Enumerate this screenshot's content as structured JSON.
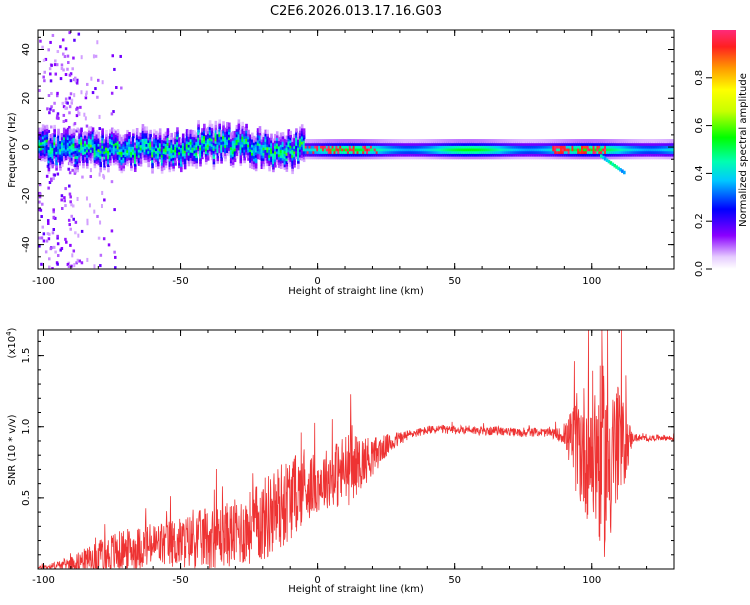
{
  "title": "C2E6.2026.013.17.16.G03",
  "chart_data": [
    {
      "type": "heatmap",
      "xlabel": "Height of straight line (km)",
      "ylabel": "Frequency (Hz)",
      "xlim": [
        -102,
        130
      ],
      "ylim": [
        -50,
        48
      ],
      "xticks": [
        -100,
        -50,
        0,
        50,
        100
      ],
      "yticks": [
        -40,
        -20,
        0,
        20,
        40
      ],
      "xtick_labels": [
        "-100",
        "-50",
        "0",
        "50",
        "100"
      ],
      "ytick_labels": [
        "-40",
        "-20",
        "0",
        "20",
        "40"
      ],
      "colorbar": {
        "label": "Normalized spectral amplitude",
        "range": [
          0,
          1
        ],
        "ticks": [
          0.0,
          0.2,
          0.4,
          0.6,
          0.8
        ],
        "tick_labels": [
          "0.0",
          "0.2",
          "0.4",
          "0.6",
          "0.8"
        ]
      },
      "band_center_hz": 0
    },
    {
      "type": "line",
      "xlabel": "Height of straight line (km)",
      "ylabel": "SNR (10 * v/v)",
      "exponent_label": "(x10",
      "exponent_power": "4",
      "exponent_close": ")",
      "xlim": [
        -102,
        130
      ],
      "ylim": [
        0,
        1.68
      ],
      "xticks": [
        -100,
        -50,
        0,
        50,
        100
      ],
      "yticks": [
        0.5,
        1.0,
        1.5
      ],
      "xtick_labels": [
        "-100",
        "-50",
        "0",
        "50",
        "100"
      ],
      "ytick_labels": [
        "0.5",
        "1.0",
        "1.5"
      ],
      "series": [
        {
          "name": "SNR",
          "color": "#ee3333",
          "x": [
            -102,
            -95,
            -90,
            -85,
            -80,
            -75,
            -70,
            -65,
            -60,
            -55,
            -50,
            -45,
            -40,
            -35,
            -30,
            -25,
            -20,
            -15,
            -10,
            -5,
            0,
            5,
            10,
            15,
            20,
            25,
            30,
            35,
            40,
            45,
            50,
            55,
            60,
            65,
            70,
            75,
            80,
            85,
            90,
            95,
            100,
            105,
            110,
            115,
            120,
            125,
            130
          ],
          "y": [
            0.01,
            0.03,
            0.05,
            0.08,
            0.1,
            0.14,
            0.16,
            0.18,
            0.2,
            0.21,
            0.22,
            0.24,
            0.26,
            0.28,
            0.3,
            0.34,
            0.4,
            0.48,
            0.56,
            0.62,
            0.64,
            0.7,
            0.74,
            0.78,
            0.82,
            0.88,
            0.93,
            0.96,
            0.98,
            0.99,
            0.98,
            0.99,
            0.97,
            0.98,
            0.97,
            0.96,
            0.97,
            0.96,
            0.95,
            0.94,
            0.95,
            0.9,
            0.93,
            0.93,
            0.92,
            0.93,
            0.92
          ],
          "noise": [
            0.01,
            0.03,
            0.05,
            0.08,
            0.12,
            0.15,
            0.15,
            0.15,
            0.16,
            0.17,
            0.18,
            0.2,
            0.22,
            0.22,
            0.24,
            0.26,
            0.3,
            0.32,
            0.3,
            0.25,
            0.2,
            0.22,
            0.28,
            0.2,
            0.14,
            0.08,
            0.05,
            0.03,
            0.03,
            0.03,
            0.03,
            0.03,
            0.03,
            0.03,
            0.03,
            0.03,
            0.03,
            0.03,
            0.06,
            0.4,
            0.55,
            0.7,
            0.45,
            0.03,
            0.02,
            0.02,
            0.02
          ]
        }
      ]
    }
  ]
}
